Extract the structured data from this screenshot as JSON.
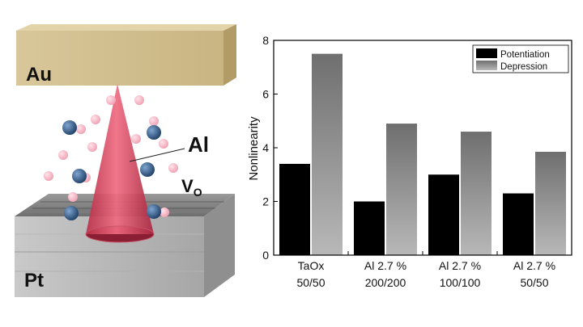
{
  "schematic": {
    "top_electrode": "Au",
    "bottom_electrode": "Pt",
    "filament_label": "Al",
    "vacancy_label": "V",
    "vacancy_subscript": "O",
    "colors": {
      "gold": "#cdb98a",
      "filament": "#d9495f",
      "vacancy_blue": "#2f5c8a",
      "vacancy_pink": "#f2b6c3"
    }
  },
  "chart_data": {
    "type": "bar",
    "categories": [
      {
        "line1": "TaOx",
        "line2": "50/50"
      },
      {
        "line1": "Al 2.7 %",
        "line2": "200/200"
      },
      {
        "line1": "Al 2.7 %",
        "line2": "100/100"
      },
      {
        "line1": "Al 2.7 %",
        "line2": "50/50"
      }
    ],
    "series": [
      {
        "name": "Potentiation",
        "values": [
          3.4,
          2.0,
          3.0,
          2.3
        ],
        "color": "#000000"
      },
      {
        "name": "Depression",
        "values": [
          7.5,
          4.9,
          4.6,
          3.85
        ],
        "color": "#8c8c8c"
      }
    ],
    "ylabel": "Nonlinearity",
    "xlabel": "",
    "ylim": [
      0,
      8
    ],
    "yticks": [
      "0",
      "2",
      "4",
      "6",
      "8"
    ],
    "legend": "top-right"
  }
}
